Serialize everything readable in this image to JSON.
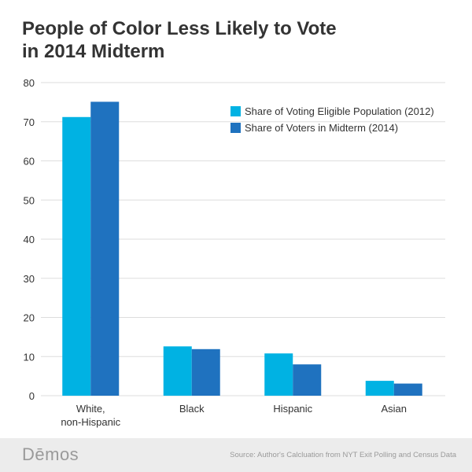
{
  "title_lines": [
    "People of Color Less Likely to Vote",
    "in 2014 Midterm"
  ],
  "footer": {
    "brand": "Dēmos",
    "source": "Source: Author's Calcluation from NYT Exit Polling and Census Data"
  },
  "colors": {
    "series_1": "#00b2e3",
    "series_2": "#1f72bf",
    "grid": "#dddddd",
    "axis_text": "#333333",
    "footer_bg": "#ececec"
  },
  "chart_data": {
    "type": "bar",
    "title": "People of Color Less Likely to Vote in 2014 Midterm",
    "categories": [
      [
        "White,",
        "non-Hispanic"
      ],
      [
        "Black"
      ],
      [
        "Hispanic"
      ],
      [
        "Asian"
      ]
    ],
    "series": [
      {
        "name": "Share of Voting Eligible Population (2012)",
        "values": [
          71.2,
          12.6,
          10.8,
          3.8
        ]
      },
      {
        "name": "Share of Voters in Midterm (2014)",
        "values": [
          75.1,
          11.9,
          8.0,
          3.1
        ]
      }
    ],
    "xlabel": "",
    "ylabel": "",
    "ylim": [
      0,
      80
    ],
    "yticks": [
      0,
      10,
      20,
      30,
      40,
      50,
      60,
      70,
      80
    ],
    "grid": true,
    "legend_position": "top-right"
  }
}
